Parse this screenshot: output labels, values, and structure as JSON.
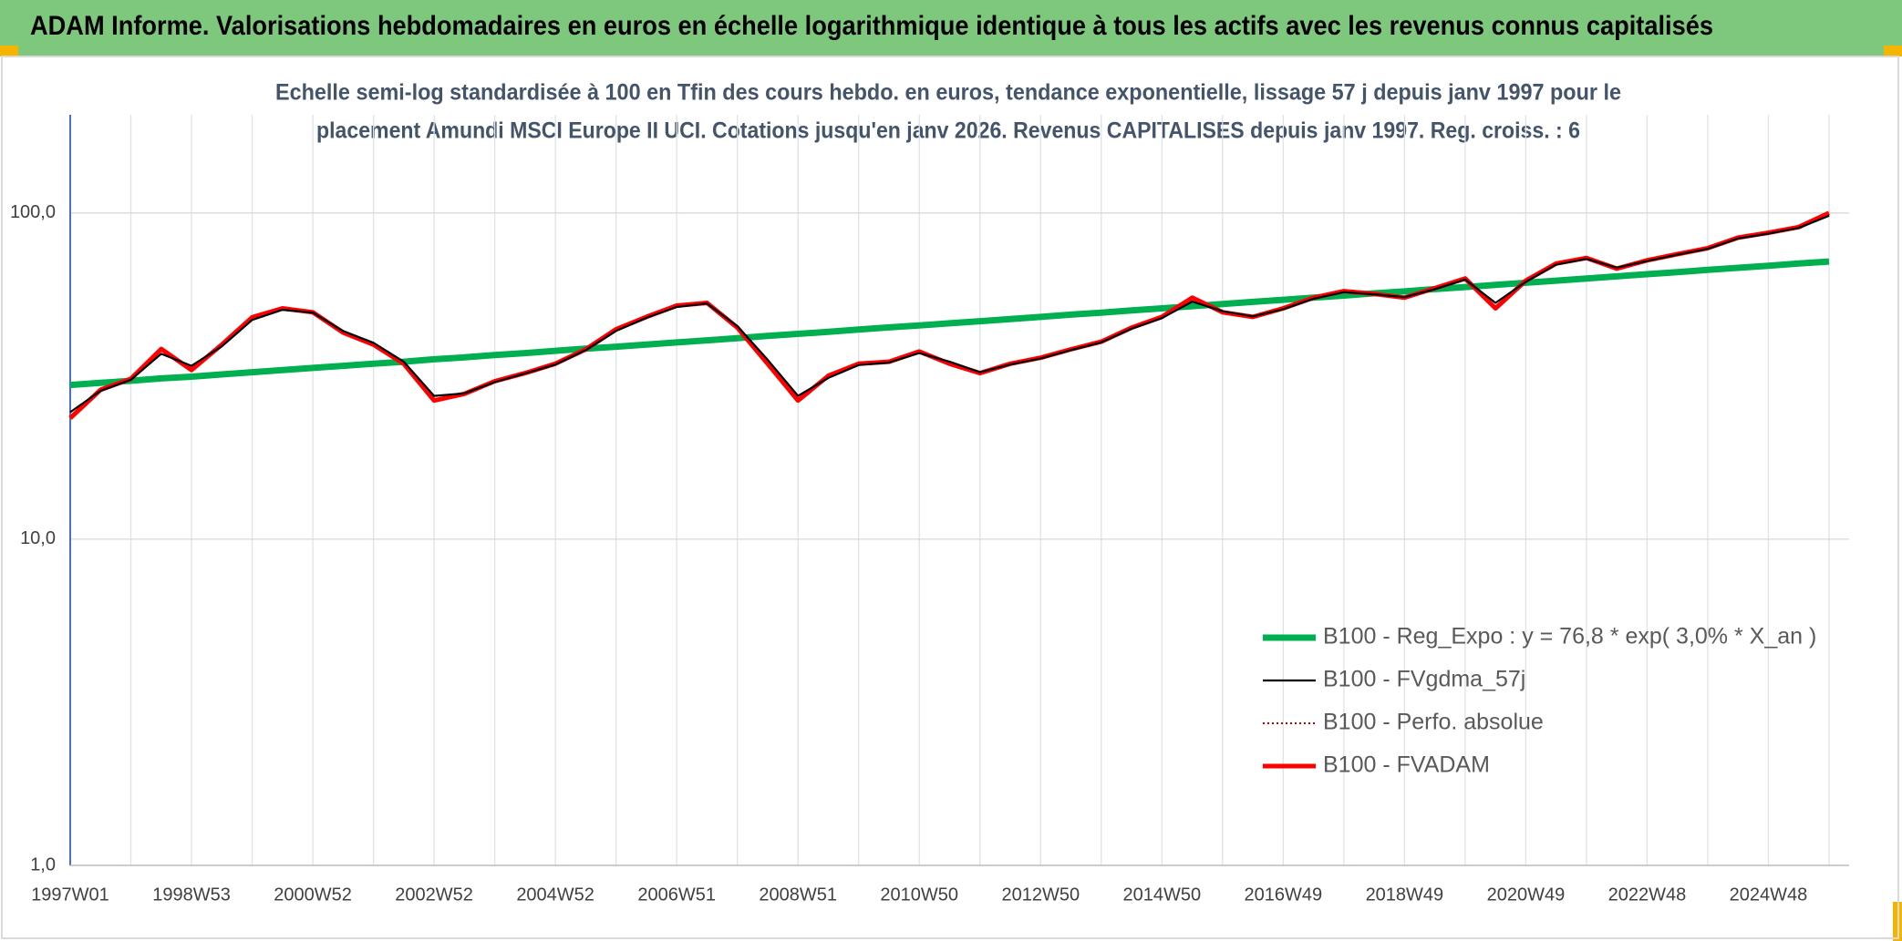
{
  "chart_data": {
    "type": "line",
    "title": "ADAM Informe. Valorisations hebdomadaires en euros en échelle logarithmique identique à tous les actifs avec les revenus connus capitalisés",
    "subtitle": [
      "Echelle semi-log standardisée à 100 en Tfin des cours hebdo. en euros, tendance exponentielle, lissage 57 j depuis janv 1997 pour le",
      "placement Amundi MSCI Europe II UCI. Cotations jusqu'en janv 2026. Revenus CAPITALISES depuis janv 1997. Reg. croiss. : 6"
    ],
    "log_scale": true,
    "grid": true,
    "legend_position": "lower-right",
    "ylim": [
      1,
      200
    ],
    "yticks": [
      {
        "value": 1,
        "label": "1,0"
      },
      {
        "value": 10,
        "label": "10,0"
      },
      {
        "value": 100,
        "label": "100,0"
      }
    ],
    "categories": [
      "1997W01",
      null,
      null,
      null,
      "1998W53",
      null,
      null,
      null,
      "2000W52",
      null,
      null,
      null,
      "2002W52",
      null,
      null,
      null,
      "2004W52",
      null,
      null,
      null,
      "2006W51",
      null,
      null,
      null,
      "2008W51",
      null,
      null,
      null,
      "2010W50",
      null,
      null,
      null,
      "2012W50",
      null,
      null,
      null,
      "2014W50",
      null,
      null,
      null,
      "2016W49",
      null,
      null,
      null,
      "2018W49",
      null,
      null,
      null,
      "2020W49",
      null,
      null,
      null,
      "2022W48",
      null,
      null,
      null,
      "2024W48",
      null,
      null
    ],
    "series": [
      {
        "name": "B100 - Reg_Expo : y = 76,8 * exp( 3,0% *  X_an )",
        "color": "#00b050",
        "style": "solid",
        "values": [
          29.7,
          30.15,
          30.6,
          31.1,
          31.5,
          32.0,
          32.5,
          33.0,
          33.5,
          34.0,
          34.5,
          35.0,
          35.6,
          36.1,
          36.7,
          37.2,
          37.8,
          38.4,
          38.9,
          39.5,
          40.1,
          40.7,
          41.3,
          42.0,
          42.6,
          43.2,
          43.9,
          44.6,
          45.2,
          45.9,
          46.6,
          47.3,
          48.0,
          48.8,
          49.5,
          50.3,
          51.0,
          51.8,
          52.6,
          53.4,
          54.2,
          55.0,
          55.8,
          56.7,
          57.5,
          58.4,
          59.3,
          60.2,
          61.1,
          62.0,
          63.0,
          63.9,
          64.9,
          65.9,
          66.9,
          67.9,
          68.9,
          70.0,
          71.0
        ]
      },
      {
        "name": "B100 - FVgdma_57j",
        "color": "#000000",
        "style": "solid",
        "values": [
          24.5,
          28.5,
          30.8,
          37.0,
          34.0,
          39.0,
          47.0,
          50.5,
          49.5,
          43.5,
          40.0,
          35.0,
          27.5,
          28.0,
          30.3,
          32.2,
          34.3,
          38.0,
          43.5,
          47.7,
          51.5,
          52.8,
          45.0,
          35.5,
          27.5,
          31.2,
          34.2,
          34.8,
          37.2,
          35.0,
          32.5,
          34.3,
          35.8,
          38.0,
          40.1,
          44.2,
          47.6,
          53.5,
          50.0,
          48.2,
          50.7,
          54.6,
          57.2,
          56.3,
          55.2,
          58.4,
          62.5,
          53.0,
          61.5,
          69.5,
          72.3,
          68.0,
          71.2,
          74.5,
          77.6,
          83.5,
          86.5,
          90.0,
          98.0
        ]
      },
      {
        "name": "B100 - Perfo. absolue",
        "color": "#c00000",
        "style": "dotted",
        "values": [
          23.5,
          28.7,
          31.0,
          38.3,
          33.0,
          39.5,
          47.9,
          51.0,
          49.6,
          43.0,
          39.5,
          34.5,
          26.6,
          27.9,
          30.5,
          32.3,
          34.5,
          38.2,
          44.0,
          48.0,
          52.0,
          53.0,
          44.5,
          34.5,
          26.6,
          31.7,
          34.5,
          35.0,
          37.6,
          34.5,
          32.3,
          34.5,
          36.0,
          38.2,
          40.3,
          44.5,
          48.0,
          55.0,
          49.6,
          48.0,
          51.0,
          55.0,
          57.6,
          56.5,
          55.0,
          58.8,
          63.0,
          51.0,
          62.0,
          70.0,
          72.8,
          67.5,
          71.6,
          74.8,
          78.0,
          84.0,
          87.0,
          90.5,
          100.0
        ]
      },
      {
        "name": "B100 - FVADAM",
        "color": "#ff0000",
        "style": "solid",
        "values": [
          23.5,
          28.7,
          31.0,
          38.3,
          33.0,
          39.5,
          47.9,
          51.0,
          49.6,
          43.0,
          39.5,
          34.5,
          26.6,
          27.9,
          30.5,
          32.3,
          34.5,
          38.2,
          44.0,
          48.0,
          52.0,
          53.0,
          44.5,
          34.5,
          26.6,
          31.7,
          34.5,
          35.0,
          37.6,
          34.5,
          32.3,
          34.5,
          36.0,
          38.2,
          40.3,
          44.5,
          48.0,
          55.0,
          49.6,
          48.0,
          51.0,
          55.0,
          57.6,
          56.5,
          55.0,
          58.8,
          63.0,
          51.0,
          62.0,
          70.0,
          72.8,
          67.5,
          71.6,
          74.8,
          78.0,
          84.0,
          87.0,
          90.5,
          100.0
        ]
      }
    ]
  }
}
